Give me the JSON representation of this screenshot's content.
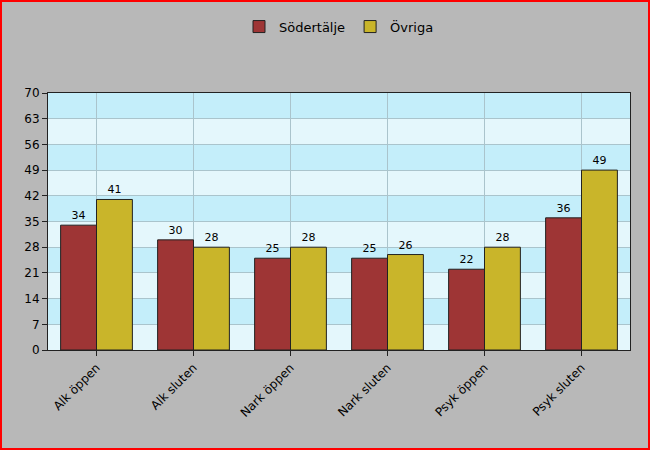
{
  "chart_data": {
    "type": "bar",
    "categories": [
      "Alk öppen",
      "Alk sluten",
      "Nark öppen",
      "Nark sluten",
      "Psyk öppen",
      "Psyk sluten"
    ],
    "series": [
      {
        "name": "Södertälje",
        "color": "#9e3535",
        "values": [
          34,
          30,
          25,
          25,
          22,
          36
        ]
      },
      {
        "name": "Övriga",
        "color": "#c9b52a",
        "values": [
          41,
          28,
          28,
          26,
          28,
          49
        ]
      }
    ],
    "ylim": [
      0,
      70
    ],
    "yticks": [
      0,
      7,
      14,
      21,
      28,
      35,
      42,
      49,
      56,
      63,
      70
    ],
    "grid": true,
    "legend": "top",
    "data_labels": true
  }
}
